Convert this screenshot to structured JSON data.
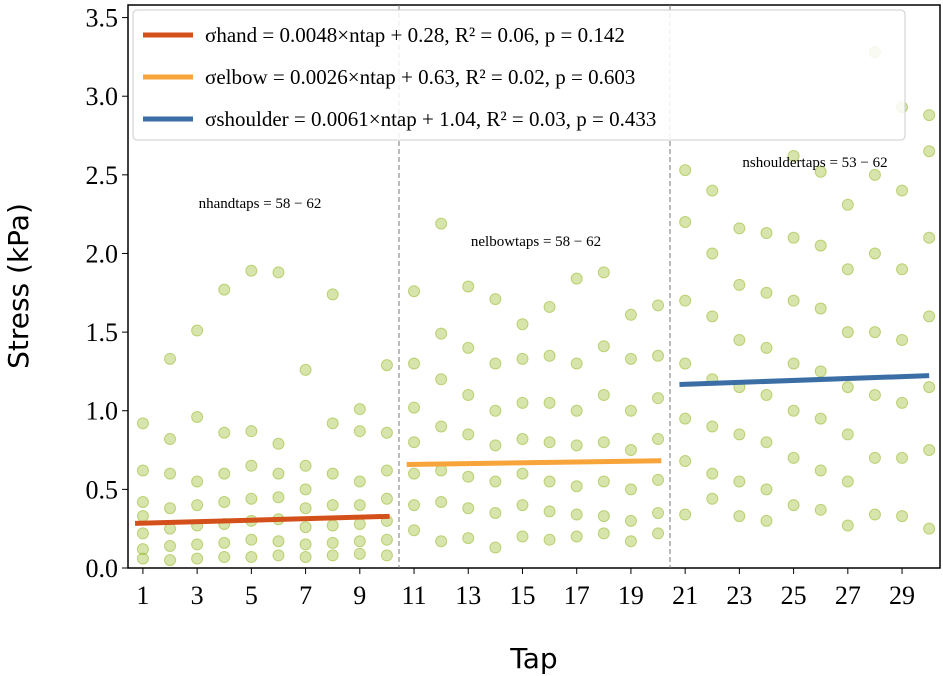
{
  "chart_data": {
    "type": "scatter",
    "xlabel": "Tap",
    "ylabel": "Stress (kPa)",
    "xlim": [
      0.45,
      30.4
    ],
    "ylim": [
      0,
      3.58
    ],
    "xticks": [
      1,
      3,
      5,
      7,
      9,
      11,
      13,
      15,
      17,
      19,
      21,
      23,
      25,
      27,
      29
    ],
    "yticks": [
      {
        "value": 0,
        "label": "0.0"
      },
      0.5,
      {
        "value": 1,
        "label": "1.0"
      },
      1.5,
      {
        "value": 2,
        "label": "2.0"
      },
      2.5,
      {
        "value": 3,
        "label": "3.0"
      },
      3.5
    ],
    "series": [
      {
        "type": "scatter",
        "color": "#9cbd33",
        "x": [
          1,
          1,
          1,
          1,
          1,
          1,
          1,
          2,
          2,
          2,
          2,
          2,
          2,
          2,
          3,
          3,
          3,
          3,
          3,
          3,
          3,
          4,
          4,
          4,
          4,
          4,
          4,
          4,
          5,
          5,
          5,
          5,
          5,
          5,
          5,
          6,
          6,
          6,
          6,
          6,
          6,
          6,
          7,
          7,
          7,
          7,
          7,
          7,
          7,
          8,
          8,
          8,
          8,
          8,
          8,
          8,
          9,
          9,
          9,
          9,
          9,
          9,
          9,
          10,
          10,
          10,
          10,
          10,
          10,
          10,
          11,
          11,
          11,
          11,
          11,
          11,
          11,
          12,
          12,
          12,
          12,
          12,
          12,
          12,
          13,
          13,
          13,
          13,
          13,
          13,
          13,
          14,
          14,
          14,
          14,
          14,
          14,
          14,
          15,
          15,
          15,
          15,
          15,
          15,
          15,
          16,
          16,
          16,
          16,
          16,
          16,
          16,
          17,
          17,
          17,
          17,
          17,
          17,
          17,
          18,
          18,
          18,
          18,
          18,
          18,
          18,
          19,
          19,
          19,
          19,
          19,
          19,
          19,
          20,
          20,
          20,
          20,
          20,
          20,
          20,
          21,
          21,
          21,
          21,
          21,
          21,
          21,
          22,
          22,
          22,
          22,
          22,
          22,
          22,
          23,
          23,
          23,
          23,
          23,
          23,
          23,
          24,
          24,
          24,
          24,
          24,
          24,
          24,
          25,
          25,
          25,
          25,
          25,
          25,
          25,
          26,
          26,
          26,
          26,
          26,
          26,
          26,
          27,
          27,
          27,
          27,
          27,
          27,
          27,
          28,
          28,
          28,
          28,
          28,
          28,
          28,
          29,
          29,
          29,
          29,
          29,
          29,
          29,
          30,
          30,
          30,
          30,
          30,
          30,
          30
        ],
        "values": [
          0.92,
          0.62,
          0.42,
          0.33,
          0.22,
          0.12,
          0.06,
          1.33,
          0.82,
          0.6,
          0.38,
          0.25,
          0.14,
          0.05,
          1.51,
          0.96,
          0.55,
          0.4,
          0.27,
          0.15,
          0.06,
          1.77,
          0.86,
          0.6,
          0.42,
          0.28,
          0.16,
          0.07,
          1.89,
          0.87,
          0.65,
          0.44,
          0.3,
          0.18,
          0.07,
          1.88,
          0.79,
          0.6,
          0.45,
          0.31,
          0.17,
          0.08,
          1.26,
          0.65,
          0.5,
          0.38,
          0.26,
          0.15,
          0.07,
          1.74,
          0.92,
          0.6,
          0.4,
          0.27,
          0.16,
          0.08,
          1.01,
          0.87,
          0.55,
          0.4,
          0.28,
          0.17,
          0.09,
          1.29,
          0.86,
          0.62,
          0.44,
          0.3,
          0.18,
          0.08,
          1.76,
          1.3,
          1.02,
          0.8,
          0.6,
          0.4,
          0.24,
          2.19,
          1.49,
          1.2,
          0.9,
          0.62,
          0.42,
          0.17,
          1.79,
          1.4,
          1.1,
          0.85,
          0.58,
          0.38,
          0.19,
          1.71,
          1.3,
          1.0,
          0.78,
          0.55,
          0.35,
          0.13,
          1.55,
          1.33,
          1.05,
          0.82,
          0.6,
          0.4,
          0.2,
          1.66,
          1.35,
          1.05,
          0.8,
          0.55,
          0.36,
          0.18,
          1.84,
          1.3,
          1.0,
          0.78,
          0.52,
          0.34,
          0.2,
          1.88,
          1.41,
          1.1,
          0.8,
          0.55,
          0.33,
          0.22,
          1.61,
          1.33,
          1.0,
          0.75,
          0.5,
          0.3,
          0.17,
          1.67,
          1.35,
          1.08,
          0.82,
          0.56,
          0.35,
          0.22,
          2.53,
          2.2,
          1.7,
          1.3,
          0.95,
          0.68,
          0.34,
          2.4,
          2.0,
          1.6,
          1.2,
          0.9,
          0.6,
          0.44,
          2.16,
          1.8,
          1.45,
          1.15,
          0.85,
          0.55,
          0.33,
          2.13,
          1.75,
          1.4,
          1.1,
          0.8,
          0.5,
          0.3,
          2.62,
          2.1,
          1.7,
          1.3,
          1.0,
          0.7,
          0.4,
          2.52,
          2.05,
          1.65,
          1.25,
          0.95,
          0.62,
          0.37,
          2.31,
          1.9,
          1.5,
          1.15,
          0.85,
          0.55,
          0.27,
          3.28,
          2.5,
          2.0,
          1.5,
          1.1,
          0.7,
          0.34,
          2.93,
          2.4,
          1.9,
          1.45,
          1.05,
          0.7,
          0.33,
          2.88,
          2.65,
          2.1,
          1.6,
          1.15,
          0.75,
          0.25
        ]
      },
      {
        "type": "line",
        "name": "σhand = 0.0048×ntap + 0.28, R² = 0.06, p = 0.142",
        "color": "#d4501a",
        "x": [
          0.71,
          10.1
        ],
        "values": [
          0.2834,
          0.3285
        ]
      },
      {
        "type": "line",
        "name": "σelbow = 0.0026×ntap + 0.63, R² = 0.02, p = 0.603",
        "color": "#f7a43a",
        "x": [
          10.73,
          20.12
        ],
        "values": [
          0.658,
          0.682
        ]
      },
      {
        "type": "line",
        "name": "σshoulder = 0.0061×ntap + 1.04, R² = 0.03, p = 0.433",
        "color": "#3b6ea5",
        "x": [
          20.79,
          30.0
        ],
        "values": [
          1.167,
          1.223
        ]
      }
    ],
    "annotations": [
      "nhandtaps = 58 − 62",
      "nelbowtaps = 58 − 62",
      "nshouldertaps = 53 − 62"
    ]
  }
}
